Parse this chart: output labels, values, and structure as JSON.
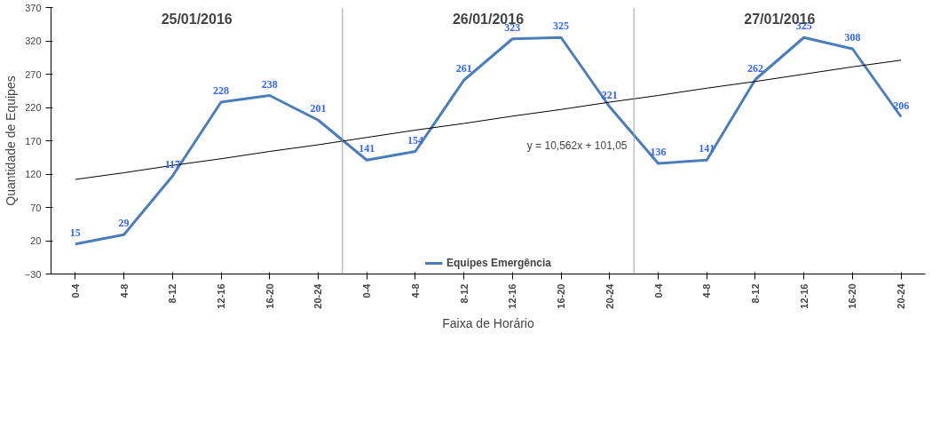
{
  "chart_data": {
    "type": "line",
    "xlabel": "Faixa de Horário",
    "ylabel": "Quantidade de Equipes",
    "categories": [
      "0-4",
      "4-8",
      "8-12",
      "12-16",
      "16-20",
      "20-24",
      "0-4",
      "4-8",
      "8-12",
      "12-16",
      "16-20",
      "20-24",
      "0-4",
      "4-8",
      "8-12",
      "12-16",
      "16-20",
      "20-24"
    ],
    "ylim": [
      -30,
      370
    ],
    "yticks": [
      -30,
      20,
      70,
      120,
      170,
      220,
      270,
      320,
      370
    ],
    "series": [
      {
        "name": "Equipes Emergência",
        "color": "#4a7ebb",
        "values": [
          15,
          29,
          117,
          228,
          238,
          201,
          141,
          154,
          261,
          323,
          325,
          221,
          136,
          141,
          262,
          325,
          308,
          206
        ],
        "value_labels": [
          "15",
          "29",
          "117",
          "228",
          "238",
          "201",
          "141",
          "154",
          "261",
          "323",
          "325",
          "221",
          "136",
          "141",
          "262",
          "325",
          "308",
          "206"
        ]
      },
      {
        "type": "line",
        "color": "#000000",
        "values": [
          112,
          122,
          133,
          143,
          154,
          164,
          175,
          186,
          196,
          207,
          217,
          228,
          238,
          249,
          259,
          270,
          281,
          291
        ]
      }
    ],
    "annotations": [
      "25/01/2016",
      "26/01/2016",
      "27/01/2016",
      "y = 10,562x + 101,05"
    ],
    "legend": "bottom",
    "grid": false
  }
}
